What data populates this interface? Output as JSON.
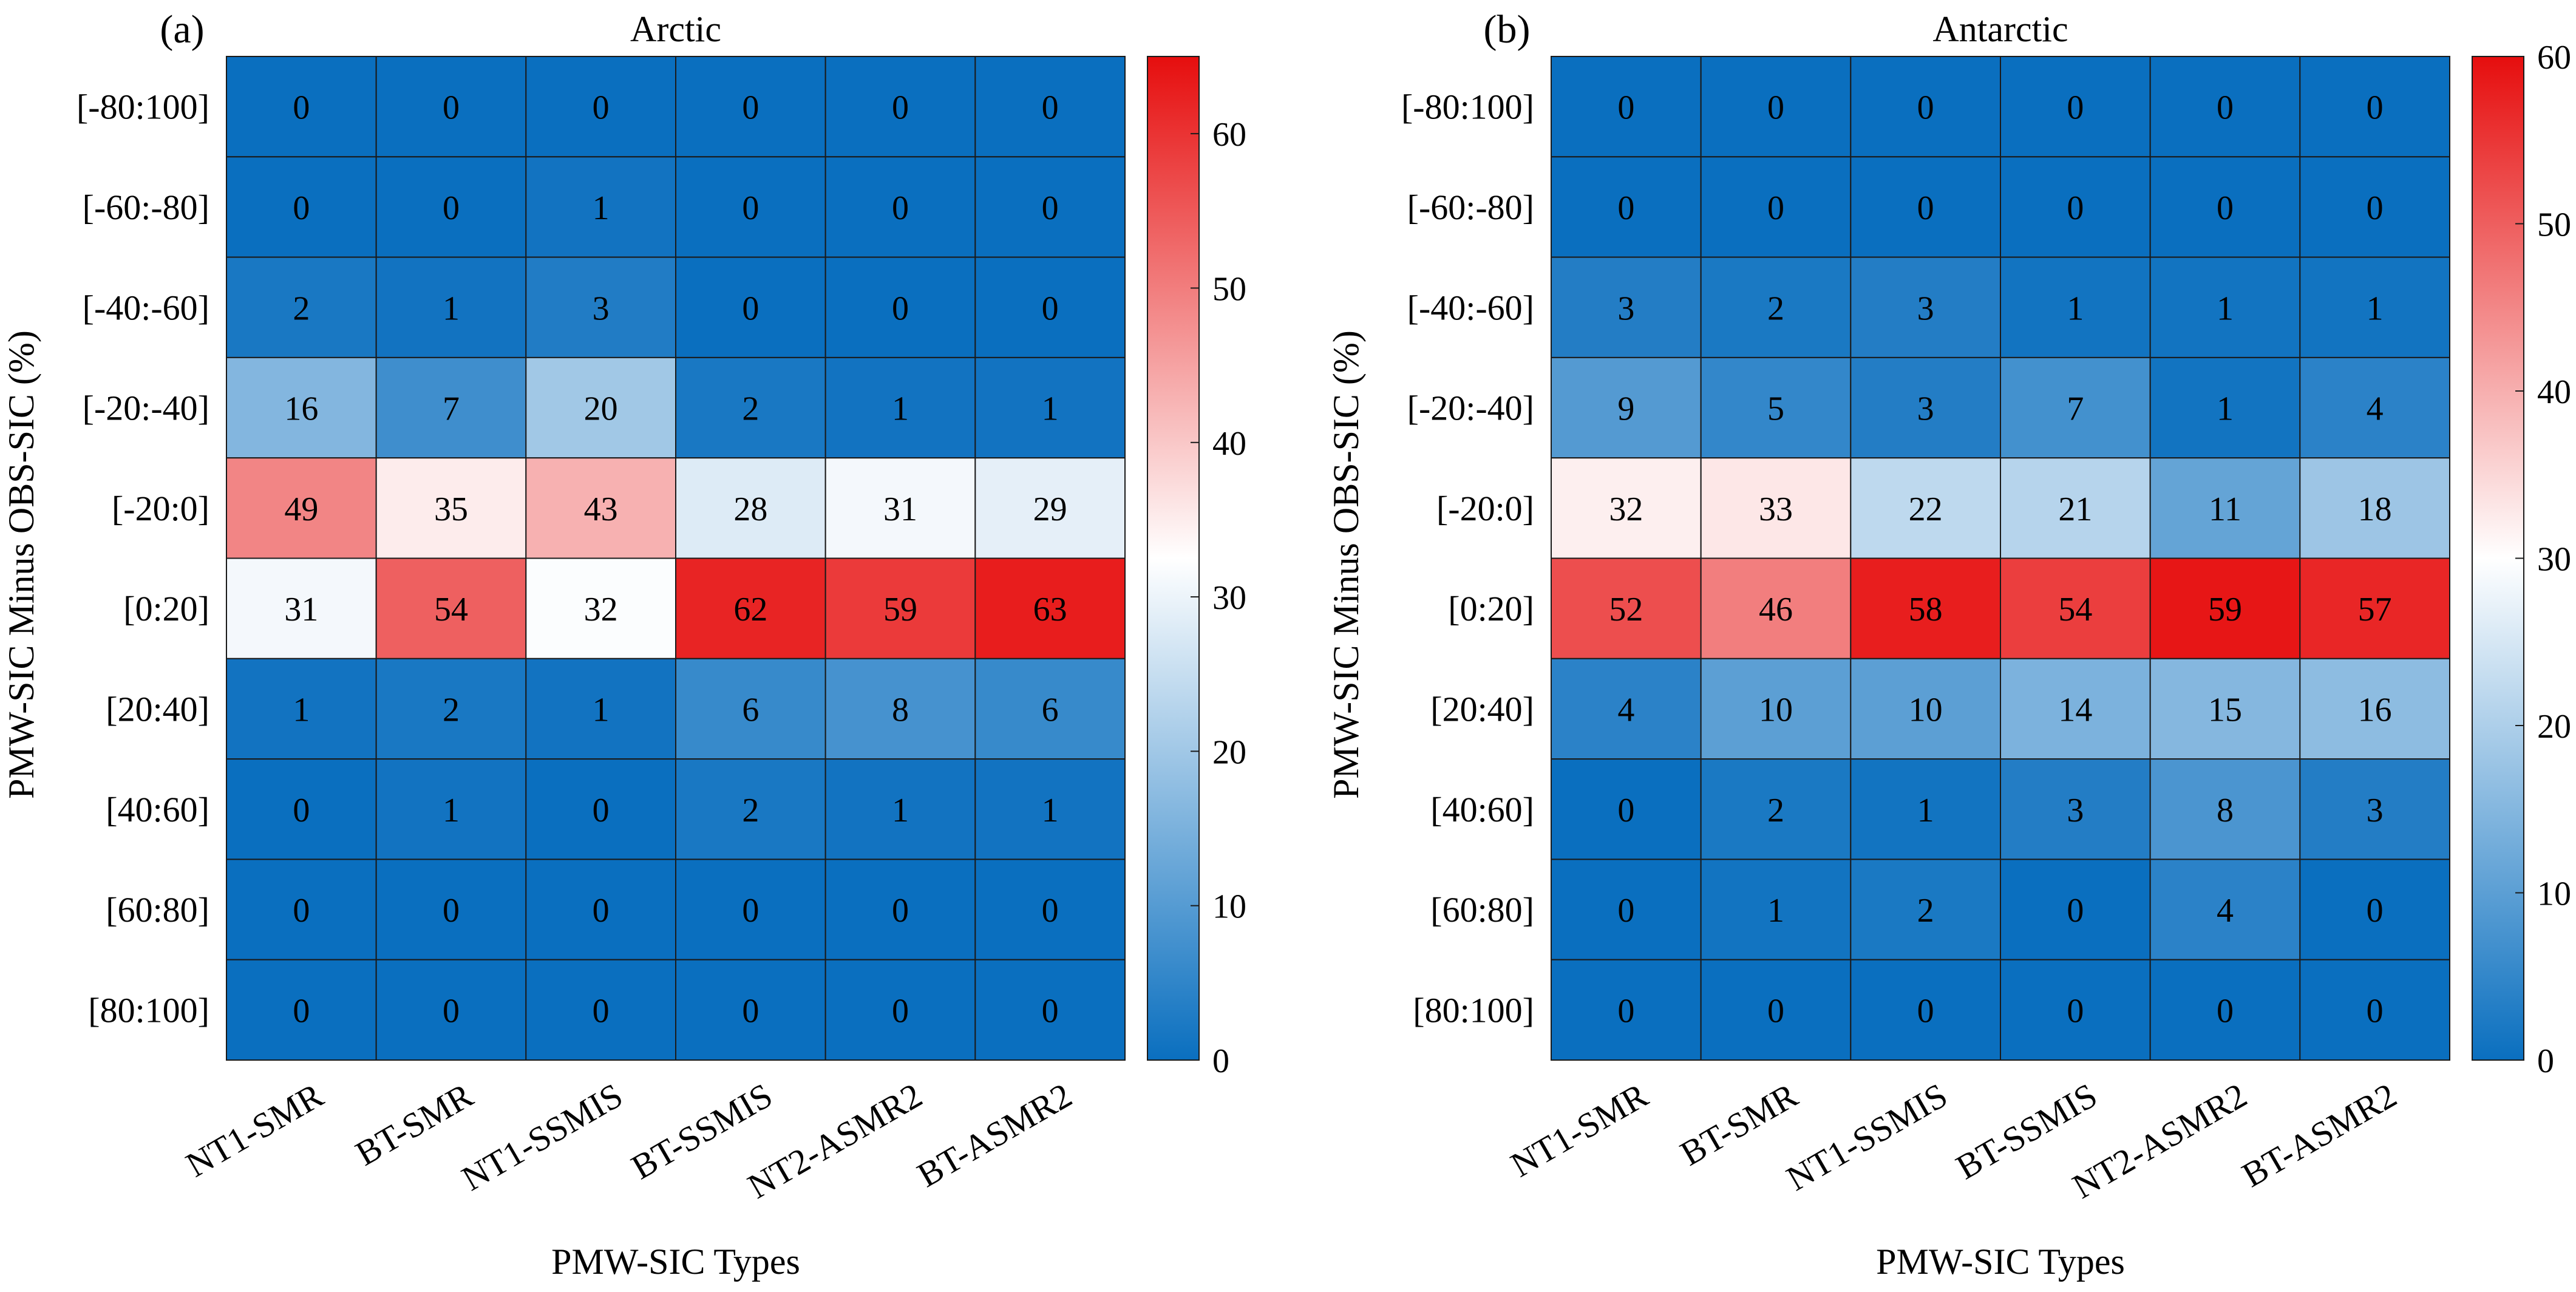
{
  "chart_data": [
    {
      "type": "heatmap",
      "panel_label": "(a)",
      "title": "Arctic",
      "xlabel": "PMW-SIC Types",
      "ylabel": "PMW-SIC Minus OBS-SIC (%)",
      "x_categories": [
        "NT1-SMR",
        "BT-SMR",
        "NT1-SSMIS",
        "BT-SSMIS",
        "NT2-ASMR2",
        "BT-ASMR2"
      ],
      "y_categories": [
        "[-80:100]",
        "[-60:-80]",
        "[-40:-60]",
        "[-20:-40]",
        "[-20:0]",
        "[0:20]",
        "[20:40]",
        "[40:60]",
        "[60:80]",
        "[80:100]"
      ],
      "values": [
        [
          0,
          0,
          0,
          0,
          0,
          0
        ],
        [
          0,
          0,
          1,
          0,
          0,
          0
        ],
        [
          2,
          1,
          3,
          0,
          0,
          0
        ],
        [
          16,
          7,
          20,
          2,
          1,
          1
        ],
        [
          49,
          35,
          43,
          28,
          31,
          29
        ],
        [
          31,
          54,
          32,
          62,
          59,
          63
        ],
        [
          1,
          2,
          1,
          6,
          8,
          6
        ],
        [
          0,
          1,
          0,
          2,
          1,
          1
        ],
        [
          0,
          0,
          0,
          0,
          0,
          0
        ],
        [
          0,
          0,
          0,
          0,
          0,
          0
        ]
      ],
      "colorbar": {
        "min": 0,
        "max": 65,
        "mid": 32.5,
        "ticks": [
          0,
          10,
          20,
          30,
          40,
          50,
          60
        ]
      }
    },
    {
      "type": "heatmap",
      "panel_label": "(b)",
      "title": "Antarctic",
      "xlabel": "PMW-SIC Types",
      "ylabel": "PMW-SIC Minus OBS-SIC (%)",
      "x_categories": [
        "NT1-SMR",
        "BT-SMR",
        "NT1-SSMIS",
        "BT-SSMIS",
        "NT2-ASMR2",
        "BT-ASMR2"
      ],
      "y_categories": [
        "[-80:100]",
        "[-60:-80]",
        "[-40:-60]",
        "[-20:-40]",
        "[-20:0]",
        "[0:20]",
        "[20:40]",
        "[40:60]",
        "[60:80]",
        "[80:100]"
      ],
      "values": [
        [
          0,
          0,
          0,
          0,
          0,
          0
        ],
        [
          0,
          0,
          0,
          0,
          0,
          0
        ],
        [
          3,
          2,
          3,
          1,
          1,
          1
        ],
        [
          9,
          5,
          3,
          7,
          1,
          4
        ],
        [
          32,
          33,
          22,
          21,
          11,
          18
        ],
        [
          52,
          46,
          58,
          54,
          59,
          57
        ],
        [
          4,
          10,
          10,
          14,
          15,
          16
        ],
        [
          0,
          2,
          1,
          3,
          8,
          3
        ],
        [
          0,
          1,
          2,
          0,
          4,
          0
        ],
        [
          0,
          0,
          0,
          0,
          0,
          0
        ]
      ],
      "colorbar": {
        "min": 0,
        "max": 60,
        "mid": 30,
        "ticks": [
          0,
          10,
          20,
          30,
          40,
          50,
          60
        ]
      }
    }
  ],
  "colors": {
    "low": "#0a6fbf",
    "mid": "#ffffff",
    "high": "#e60e0e",
    "grid": "#1a1a1a"
  }
}
